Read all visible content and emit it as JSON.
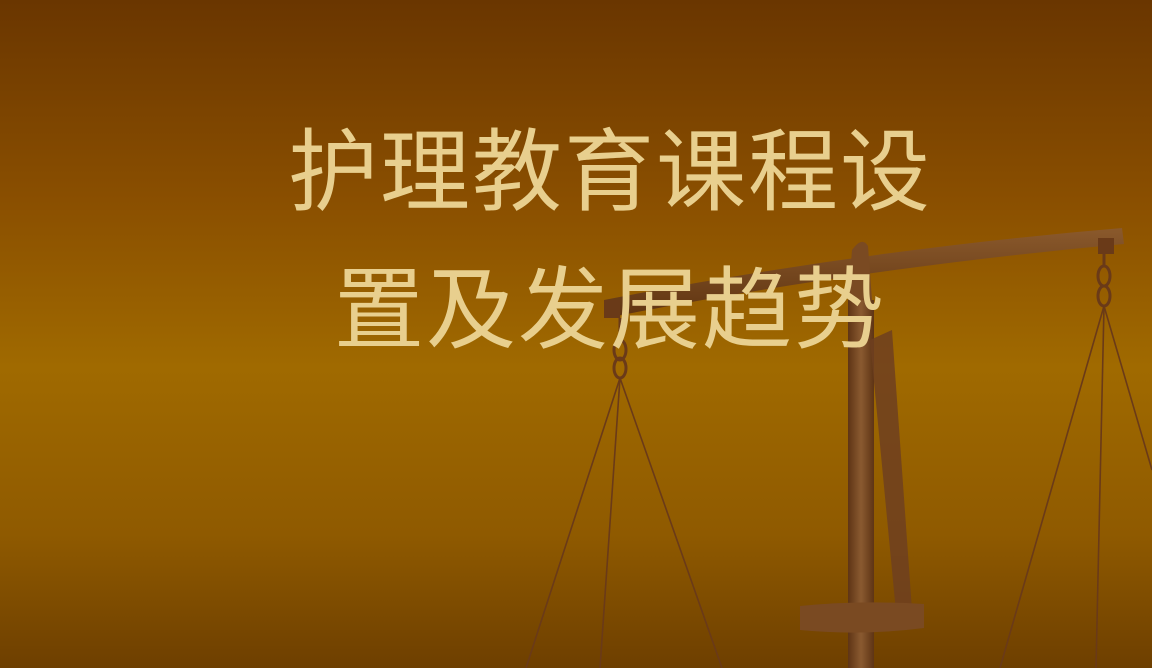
{
  "slide": {
    "title_line1": "护理教育课程设",
    "title_line2": "置及发展趋势",
    "background_icon": "scales-of-justice-icon",
    "colors": {
      "background_top": "#6a3600",
      "background_mid": "#a06a00",
      "title_text": "#e8cf8e",
      "scale_wood": "#7a4a22"
    }
  }
}
